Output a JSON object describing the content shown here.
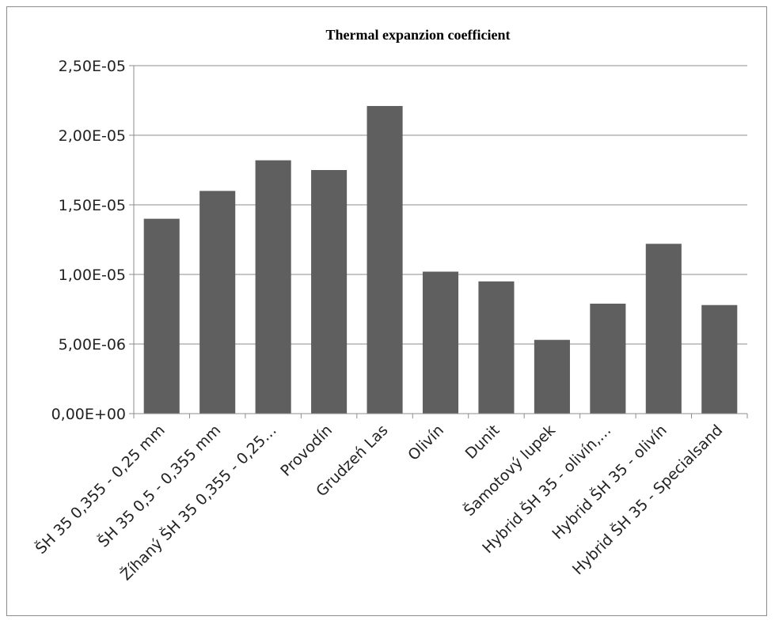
{
  "chart_data": {
    "type": "bar",
    "title": "Thermal expanzion coefficient",
    "xlabel": "",
    "ylabel": "",
    "categories": [
      "ŠH 35 0,355 - 0,25 mm",
      "ŠH 35 0,5 - 0,355 mm",
      "Žíhaný ŠH 35 0,355 - 0,25…",
      "Provodín",
      "Grudzeń Las",
      "Olivín",
      "Dunit",
      "Šamotový lupek",
      "Hybrid ŠH 35 - olivín,…",
      "Hybrid ŠH 35 - olivín",
      "Hybrid ŠH 35 - Specialsand"
    ],
    "values": [
      1.4e-05,
      1.6e-05,
      1.82e-05,
      1.75e-05,
      2.21e-05,
      1.02e-05,
      9.5e-06,
      5.3e-06,
      7.9e-06,
      1.22e-05,
      7.8e-06
    ],
    "ylim": [
      0,
      2.5e-05
    ],
    "yticks": [
      0,
      5e-06,
      1e-05,
      1.5e-05,
      2e-05,
      2.5e-05
    ],
    "ytick_labels": [
      "0,00E+00",
      "5,00E-06",
      "1,00E-05",
      "1,50E-05",
      "2,00E-05",
      "2,50E-05"
    ],
    "grid": true,
    "legend": "none",
    "bar_color": "#5f5f5f",
    "grid_color": "#8c8c8c"
  }
}
